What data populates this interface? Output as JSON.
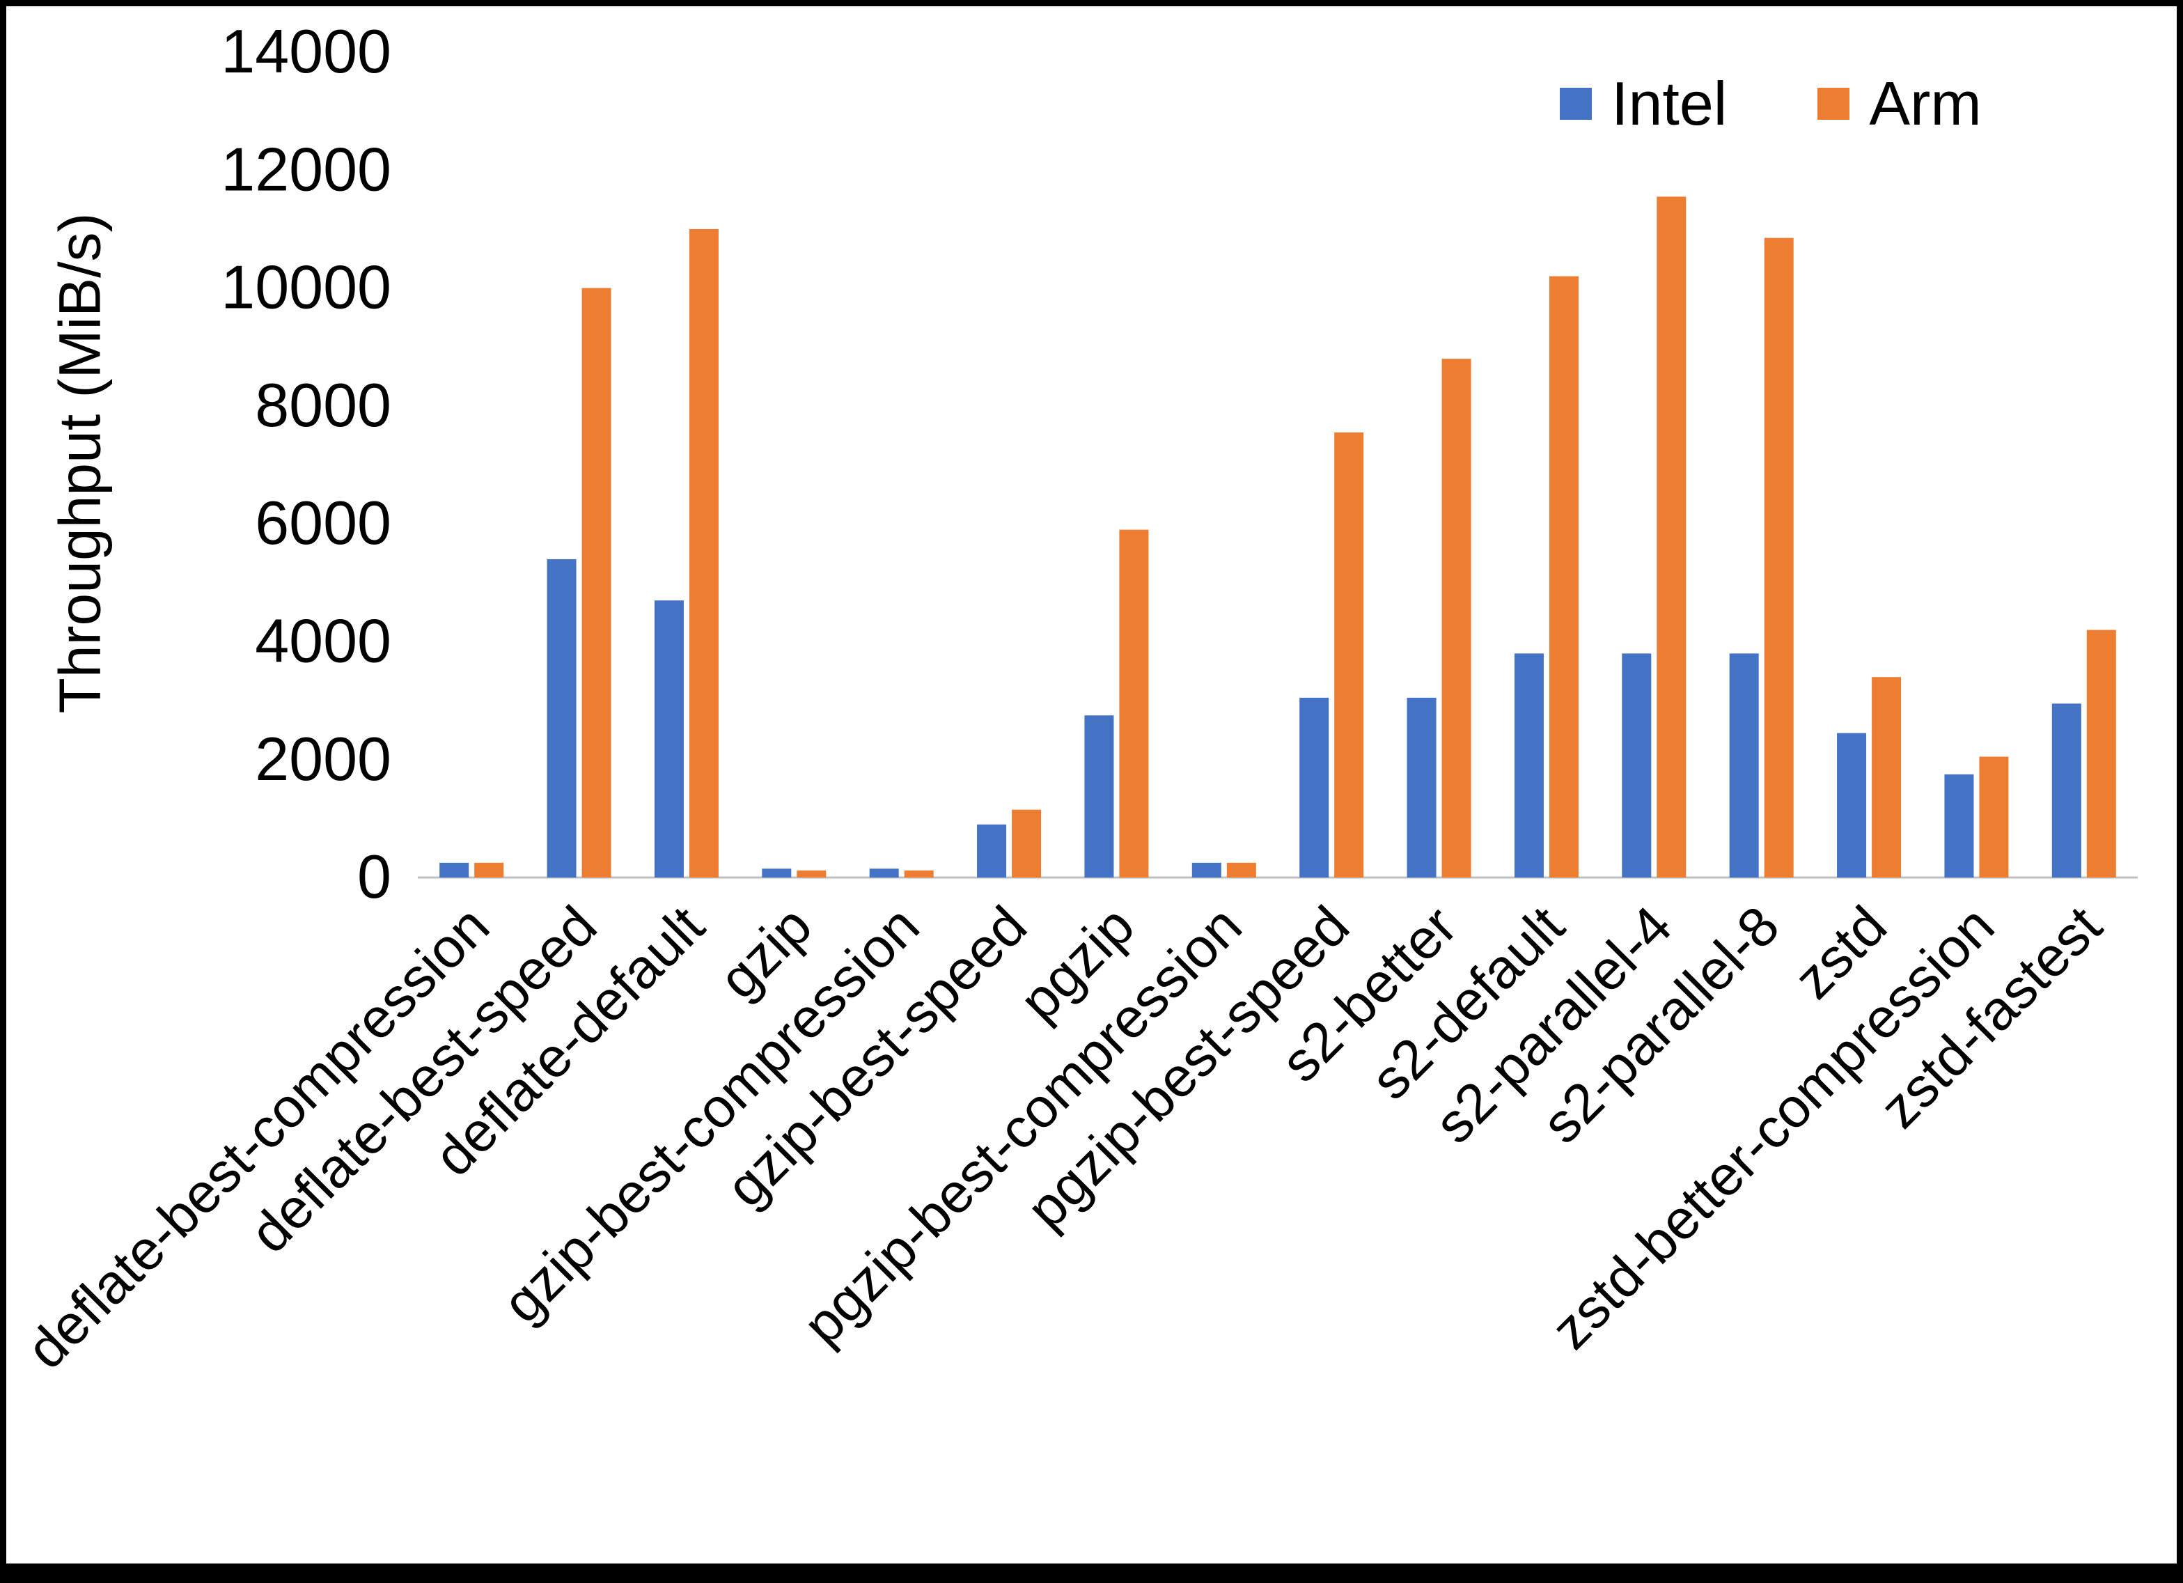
{
  "colors": {
    "background": "#ffffff",
    "frame": "#000000",
    "axis_line": "#bfbfbf",
    "text": "#000000"
  },
  "chart_data": {
    "type": "bar",
    "title": "",
    "xlabel": "",
    "ylabel": "Throughput (MiB/s)",
    "ylim": [
      0,
      14000
    ],
    "y_ticks": [
      0,
      2000,
      4000,
      6000,
      8000,
      10000,
      12000,
      14000
    ],
    "grid": false,
    "legend_position": "top-right",
    "axis_color": "#bfbfbf",
    "categories": [
      "deflate-best-compression",
      "deflate-best-speed",
      "deflate-default",
      "gzip",
      "gzip-best-compression",
      "gzip-best-speed",
      "pgzip",
      "pgzip-best-compression",
      "pgzip-best-speed",
      "s2-better",
      "s2-default",
      "s2-parallel-4",
      "s2-parallel-8",
      "zstd",
      "zstd-better-compression",
      "zstd-fastest"
    ],
    "series": [
      {
        "name": "Intel",
        "color": "#4472C4",
        "values": [
          250,
          5400,
          4700,
          150,
          150,
          900,
          2750,
          250,
          3050,
          3050,
          3800,
          3800,
          3800,
          2450,
          1750,
          2950
        ]
      },
      {
        "name": "Arm",
        "color": "#ED7D31",
        "values": [
          250,
          10000,
          11000,
          120,
          120,
          1150,
          5900,
          250,
          7550,
          8800,
          10200,
          11550,
          10850,
          3400,
          2050,
          4200
        ]
      }
    ]
  }
}
